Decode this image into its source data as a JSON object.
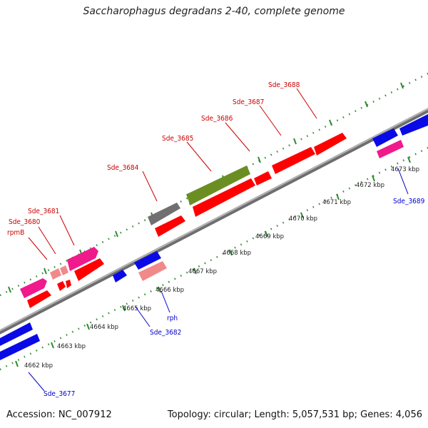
{
  "title": "Saccharophagus degradans 2-40, complete genome",
  "accession_text": "Accession: NC_007912",
  "summary_text": "Topology: circular; Length: 5,057,531 bp; Genes: 4,056",
  "colors": {
    "backbone": "#8c8c8c",
    "tick": "#2e8b2e",
    "forward_label": "#cc0000",
    "reverse_label": "#0000cc",
    "red": "#ff0000",
    "pink": "#f01a8c",
    "lightpink": "#f08a8a",
    "gray": "#707070",
    "olive": "#6b8e23",
    "blue": "#0a0ae6"
  },
  "scale_labels": [
    "4662 kbp",
    "4663 kbp",
    "4664 kbp",
    "4665 kbp",
    "4666 kbp",
    "4667 kbp",
    "4668 kbp",
    "4669 kbp",
    "4670 kbp",
    "4671 kbp",
    "4672 kbp",
    "4673 kbp"
  ],
  "gene_labels": {
    "forward": [
      "rpmB",
      "Sde_3680",
      "Sde_3681",
      "Sde_3684",
      "Sde_3685",
      "Sde_3686",
      "Sde_3687",
      "Sde_3688"
    ],
    "reverse": [
      "Sde_3677",
      "Sde_3682",
      "rph",
      "Sde_3689"
    ]
  }
}
